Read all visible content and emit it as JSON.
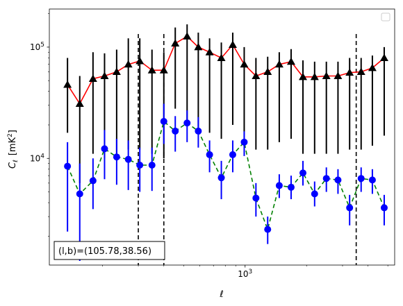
{
  "chart_data": {
    "type": "scatter",
    "x_scale": "log",
    "y_scale": "log",
    "xlim": [
      110,
      5400
    ],
    "ylim": [
      1100,
      220000
    ],
    "xlabel": "ℓ",
    "ylabel_main": "C",
    "ylabel_sub": "ℓ",
    "ylabel_unit": "[mK",
    "ylabel_unit_sup": "2",
    "ylabel_unit_close": "]",
    "x_tick_labels": [
      {
        "value": 1000,
        "base": "10",
        "exp": "3"
      }
    ],
    "y_tick_labels": [
      {
        "value": 10000,
        "base": "10",
        "exp": "4"
      },
      {
        "value": 100000,
        "base": "10",
        "exp": "5"
      }
    ],
    "vlines": [
      300,
      400,
      3500
    ],
    "legend": "top-right",
    "annotation": "(l,b)=(105.78,38.56)",
    "series": [
      {
        "marker": "triangle",
        "color": "#000000",
        "line_color": "#ff0000",
        "line_style": "solid",
        "x": [
          135,
          155,
          180,
          205,
          235,
          268,
          305,
          350,
          400,
          455,
          520,
          590,
          670,
          765,
          870,
          990,
          1130,
          1290,
          1470,
          1680,
          1920,
          2190,
          2500,
          2850,
          3250,
          3700,
          4200,
          4800
        ],
        "y": [
          46000,
          31000,
          52000,
          55000,
          60000,
          70000,
          75000,
          62000,
          62000,
          108000,
          125000,
          100000,
          90000,
          80000,
          105000,
          70000,
          55000,
          60000,
          70000,
          74000,
          54000,
          54000,
          55000,
          55000,
          59000,
          60000,
          65000,
          80000
        ],
        "err_low": [
          17000,
          6000,
          11000,
          10000,
          10000,
          12000,
          12000,
          11000,
          10000,
          28000,
          22000,
          19000,
          17000,
          15000,
          20000,
          14000,
          12000,
          12000,
          14000,
          15000,
          11000,
          11000,
          11000,
          11000,
          12000,
          12000,
          13000,
          16000
        ],
        "err_high": [
          80000,
          55000,
          90000,
          88000,
          95000,
          120000,
          120000,
          95000,
          90000,
          150000,
          160000,
          135000,
          120000,
          110000,
          135000,
          100000,
          80000,
          82000,
          90000,
          96000,
          76000,
          74000,
          74000,
          74000,
          80000,
          80000,
          84000,
          100000
        ]
      },
      {
        "marker": "circle",
        "color": "#0000ff",
        "line_color": "#008000",
        "line_style": "dashed",
        "x": [
          135,
          155,
          180,
          205,
          235,
          268,
          305,
          350,
          400,
          455,
          520,
          590,
          670,
          765,
          870,
          990,
          1130,
          1290,
          1470,
          1680,
          1920,
          2190,
          2500,
          2850,
          3250,
          3700,
          4200,
          4800
        ],
        "y": [
          8500,
          4800,
          6300,
          12200,
          10300,
          9800,
          8700,
          8700,
          21500,
          17600,
          20800,
          17600,
          10800,
          6700,
          10800,
          14000,
          4400,
          2300,
          5700,
          5500,
          7400,
          4800,
          6600,
          6400,
          3600,
          6600,
          6400,
          3600
        ],
        "err_low": [
          2200,
          1200,
          3500,
          6500,
          5800,
          5200,
          5000,
          5100,
          13500,
          11500,
          14000,
          12500,
          7500,
          4300,
          7500,
          10500,
          3000,
          1700,
          4400,
          4300,
          5700,
          3700,
          5000,
          4800,
          2500,
          5000,
          4800,
          2500
        ],
        "err_high": [
          14000,
          9000,
          10000,
          18000,
          15000,
          14500,
          12500,
          12500,
          31000,
          24000,
          27000,
          23500,
          14500,
          9500,
          14500,
          17500,
          6000,
          3000,
          7200,
          7000,
          9500,
          6200,
          8300,
          8000,
          4700,
          8300,
          8000,
          4700
        ]
      }
    ]
  }
}
